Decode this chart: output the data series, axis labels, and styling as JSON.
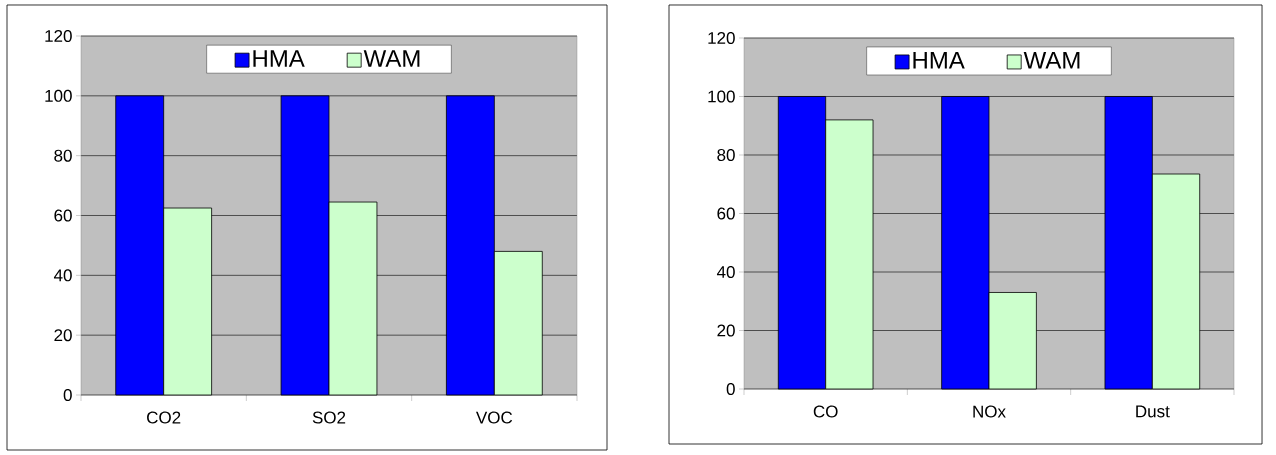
{
  "chart_data": [
    {
      "type": "bar",
      "categories": [
        "CO2",
        "SO2",
        "VOC"
      ],
      "series": [
        {
          "name": "HMA",
          "color": "#0000ff",
          "values": [
            100,
            100,
            100
          ]
        },
        {
          "name": "WAM",
          "color": "#ccffcc",
          "values": [
            62.5,
            64.5,
            48
          ]
        }
      ],
      "ylim": [
        0,
        120
      ],
      "yticks": [
        0,
        20,
        40,
        60,
        80,
        100,
        120
      ],
      "grid": "y",
      "legend": "top"
    },
    {
      "type": "bar",
      "categories": [
        "CO",
        "NOx",
        "Dust"
      ],
      "series": [
        {
          "name": "HMA",
          "color": "#0000ff",
          "values": [
            100,
            100,
            100
          ]
        },
        {
          "name": "WAM",
          "color": "#ccffcc",
          "values": [
            92,
            33,
            73.5
          ]
        }
      ],
      "ylim": [
        0,
        120
      ],
      "yticks": [
        0,
        20,
        40,
        60,
        80,
        100,
        120
      ],
      "grid": "y",
      "legend": "top"
    }
  ]
}
